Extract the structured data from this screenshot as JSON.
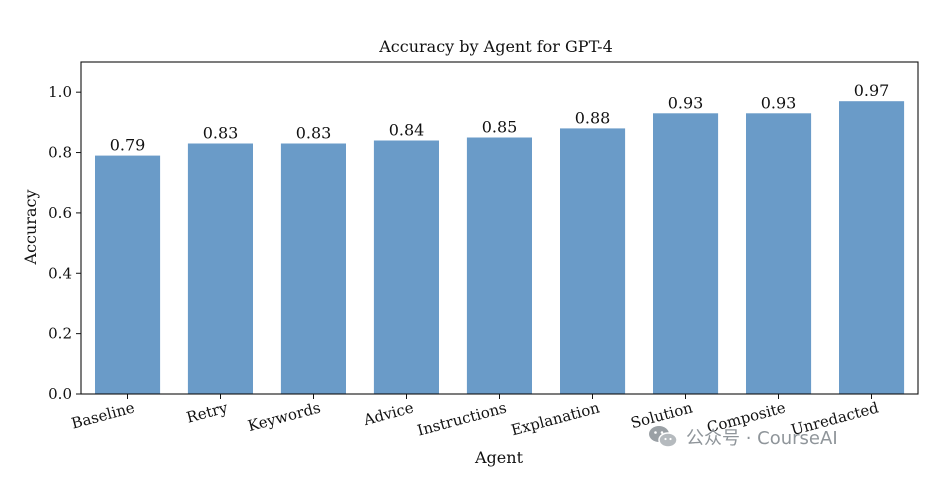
{
  "chart_data": {
    "type": "bar",
    "title": "Accuracy by Agent for GPT-4",
    "xlabel": "Agent",
    "ylabel": "Accuracy",
    "categories": [
      "Baseline",
      "Retry",
      "Keywords",
      "Advice",
      "Instructions",
      "Explanation",
      "Solution",
      "Composite",
      "Unredacted"
    ],
    "values": [
      0.79,
      0.83,
      0.83,
      0.84,
      0.85,
      0.88,
      0.93,
      0.93,
      0.97
    ],
    "value_labels": [
      "0.79",
      "0.83",
      "0.83",
      "0.84",
      "0.85",
      "0.88",
      "0.93",
      "0.93",
      "0.97"
    ],
    "ylim": [
      0,
      1.1
    ],
    "yticks": [
      0.0,
      0.2,
      0.4,
      0.6,
      0.8,
      1.0
    ],
    "ytick_labels": [
      "0.0",
      "0.2",
      "0.4",
      "0.6",
      "0.8",
      "1.0"
    ],
    "bar_color": "#6a9bc8",
    "grid": false,
    "legend": "none"
  },
  "watermark": {
    "text": "公众号 · CourseAI",
    "icon": "wechat-icon"
  }
}
